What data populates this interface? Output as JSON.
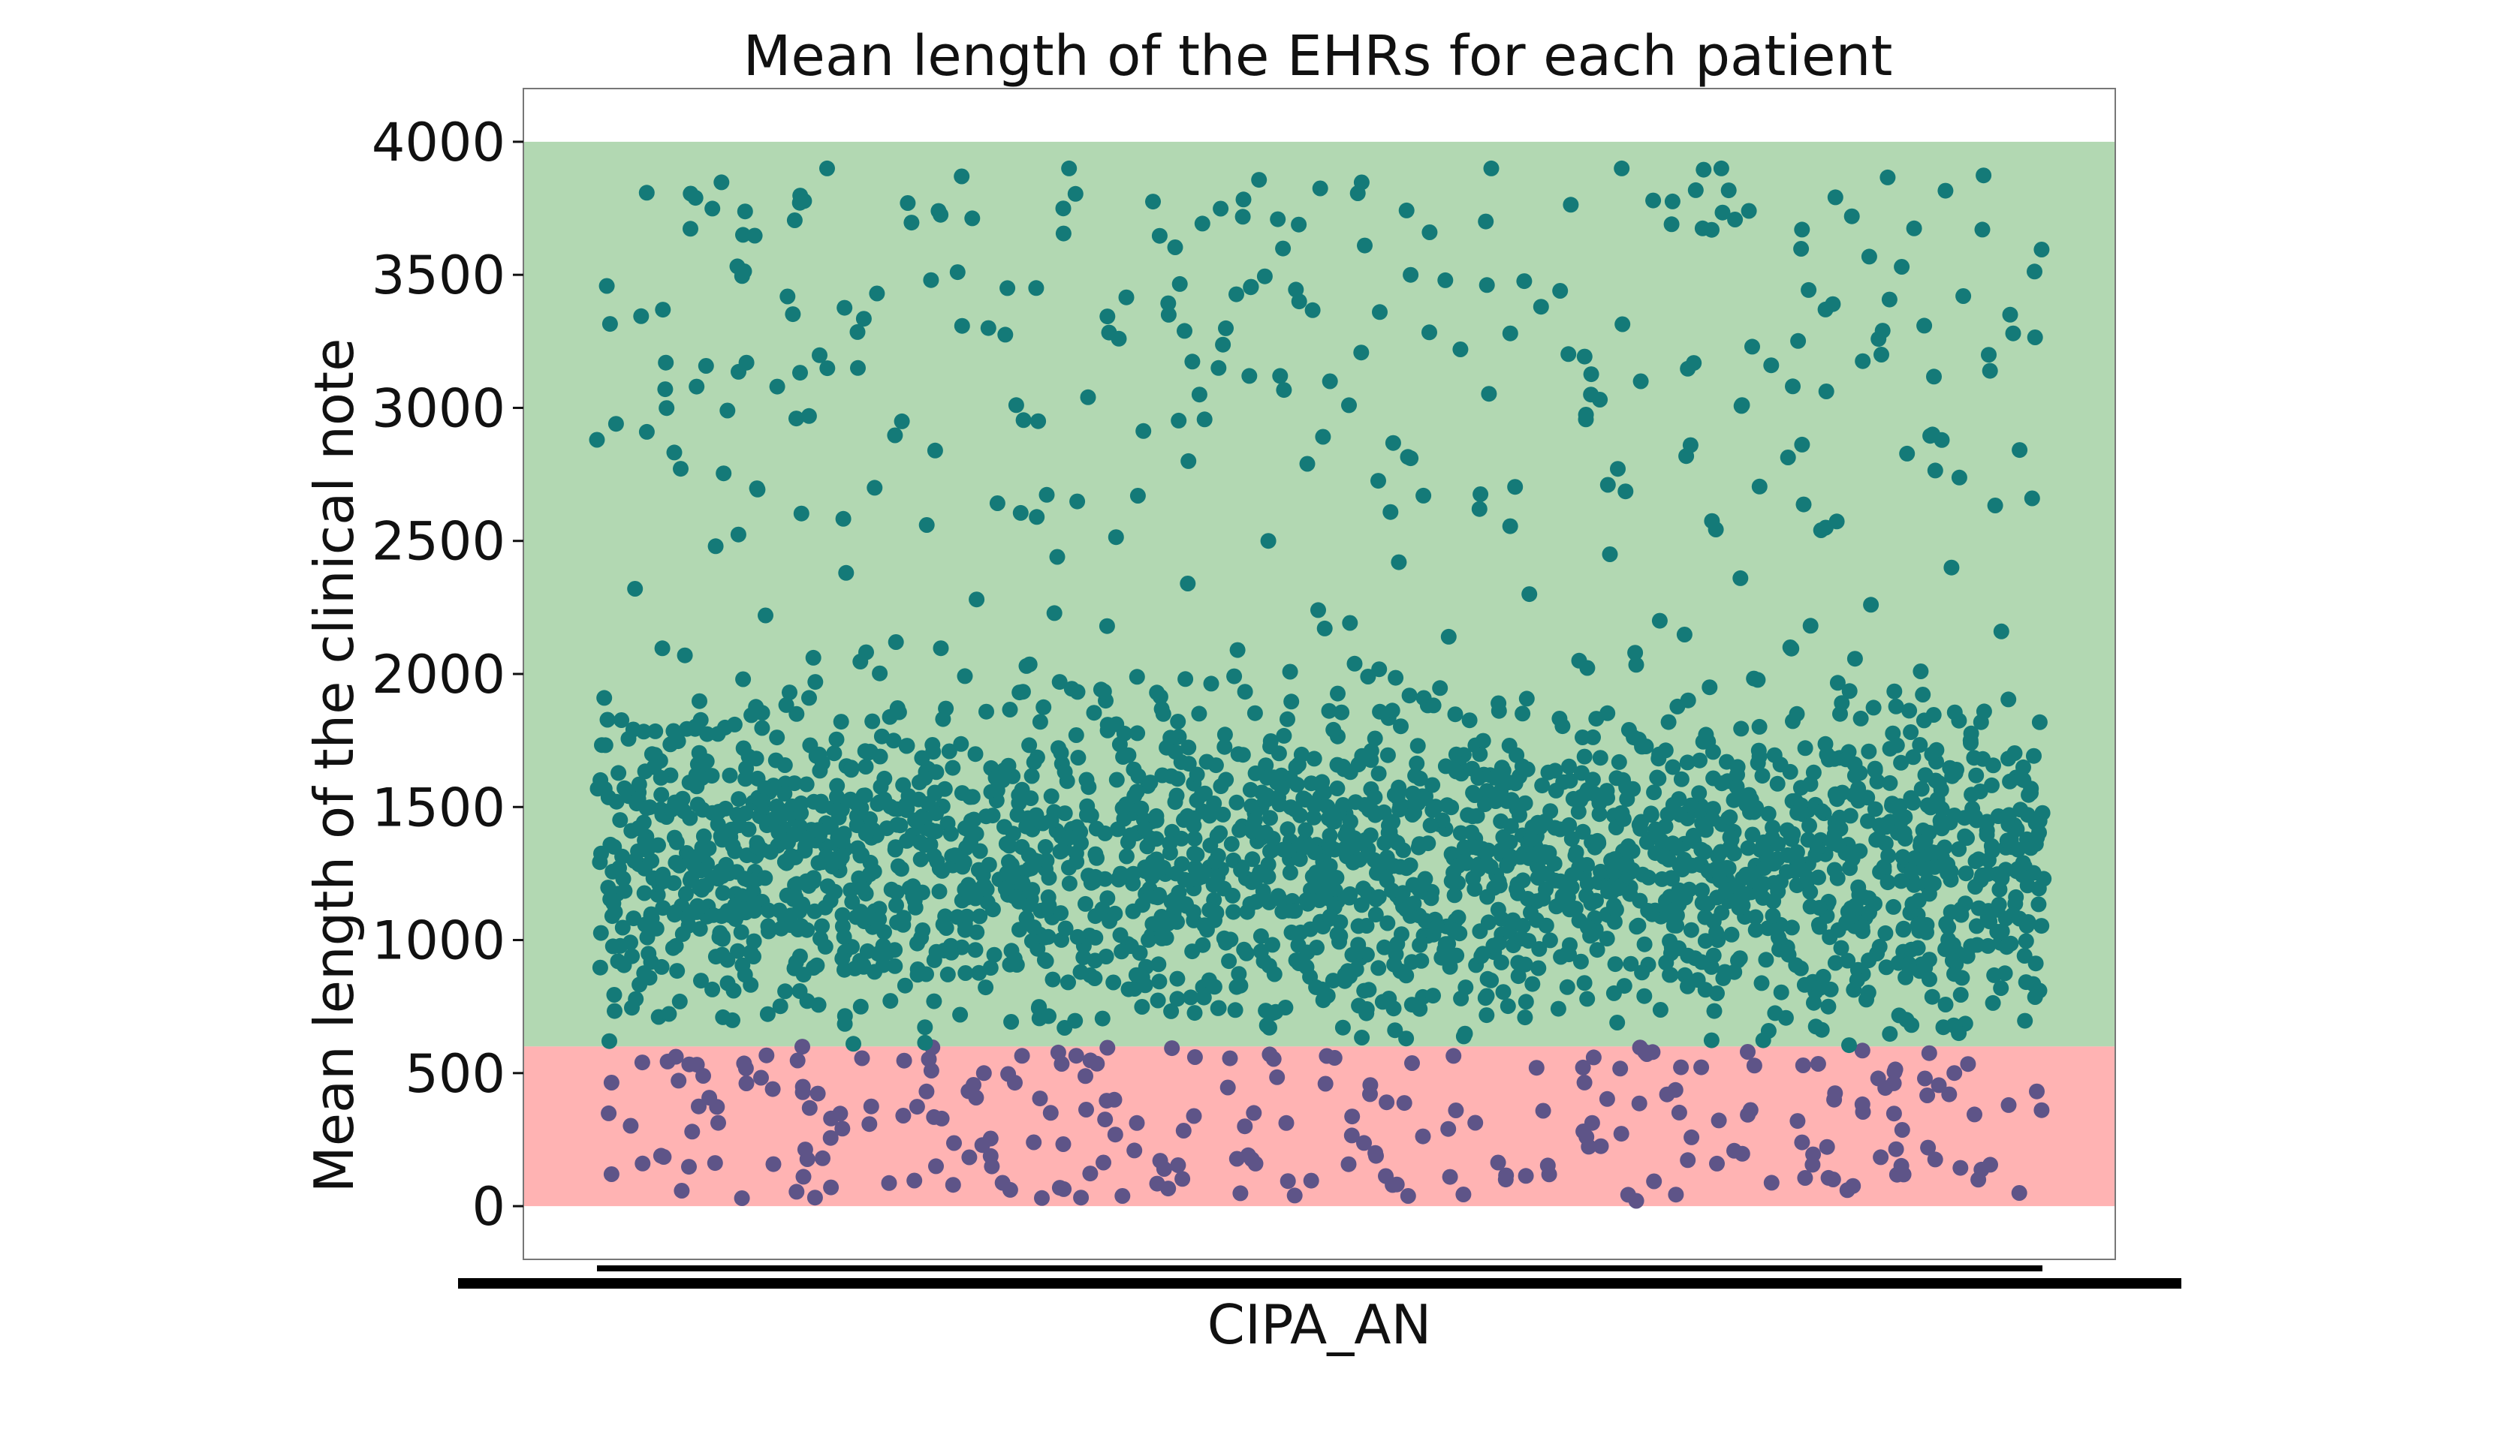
{
  "chart_data": {
    "type": "scatter",
    "title": "Mean length of the EHRs for each patient",
    "xlabel": "CIPA_AN",
    "ylabel": "Mean length of the clinical note",
    "yticks": [
      0,
      500,
      1000,
      1500,
      2000,
      2500,
      3000,
      3500,
      4000
    ],
    "ylim": [
      -200,
      4200
    ],
    "grid": false,
    "legend": "none",
    "bands": [
      {
        "y0": 600,
        "y1": 4000,
        "color": "#b2d8b2"
      },
      {
        "y0": 0,
        "y1": 600,
        "color": "#ffb3b3"
      }
    ],
    "point_colors": {
      "above_threshold": "#147a78",
      "below_threshold": "#5e5488"
    },
    "threshold": 600,
    "series": [
      {
        "x_range": [
          0,
          1
        ],
        "y": [
          2880,
          3900,
          3740,
          3390,
          3120,
          2990,
          3900,
          3900,
          3420,
          3500,
          3150,
          3230,
          3050,
          2910,
          3380,
          3300,
          3290,
          3100,
          3080,
          3690,
          3260,
          3280,
          3220,
          3770,
          3670,
          3120,
          3080,
          3050,
          2950,
          2900,
          3360,
          3900,
          3900,
          3350,
          2940,
          3280,
          3510,
          3720,
          3400,
          3170,
          3100,
          3040,
          3670,
          3660,
          3430,
          3160,
          3150,
          3170,
          3440,
          3450,
          3530,
          3010,
          2960,
          2860,
          2670,
          2660,
          2620,
          2560,
          2540,
          2500,
          2480,
          2450,
          2440,
          2400,
          2420,
          2380,
          2360,
          2340,
          2320,
          2300,
          2280,
          2260,
          2240,
          2220,
          2200,
          2180,
          2160,
          2140,
          2120,
          2100,
          2090,
          2070,
          2050,
          2030,
          2010,
          1990,
          1970,
          1950,
          1930,
          1910,
          1890,
          1870,
          1850,
          1830,
          1810,
          1790,
          1770,
          1750,
          1730,
          1710,
          1690,
          1670,
          1650,
          1630,
          1610,
          1590,
          1570,
          1550,
          1530,
          1510,
          1490,
          1470,
          1450,
          1430,
          1410,
          1390,
          1370,
          1350,
          1330,
          1310,
          1290,
          1270,
          1250,
          1230,
          1210,
          1190,
          1170,
          1150,
          1130,
          1110,
          1090,
          1070,
          1050,
          1030,
          1010,
          990,
          970,
          950,
          930,
          910,
          890,
          870,
          850,
          830,
          810,
          790,
          770,
          750,
          730,
          710,
          690,
          670,
          650,
          630,
          610,
          580,
          560,
          540,
          520,
          500,
          480,
          460,
          440,
          420,
          400,
          380,
          360,
          340,
          320,
          300,
          280,
          260,
          240,
          220,
          200,
          180,
          160,
          140,
          120,
          100,
          80,
          60,
          40,
          30,
          20
        ],
        "note_count": 0
      }
    ]
  }
}
